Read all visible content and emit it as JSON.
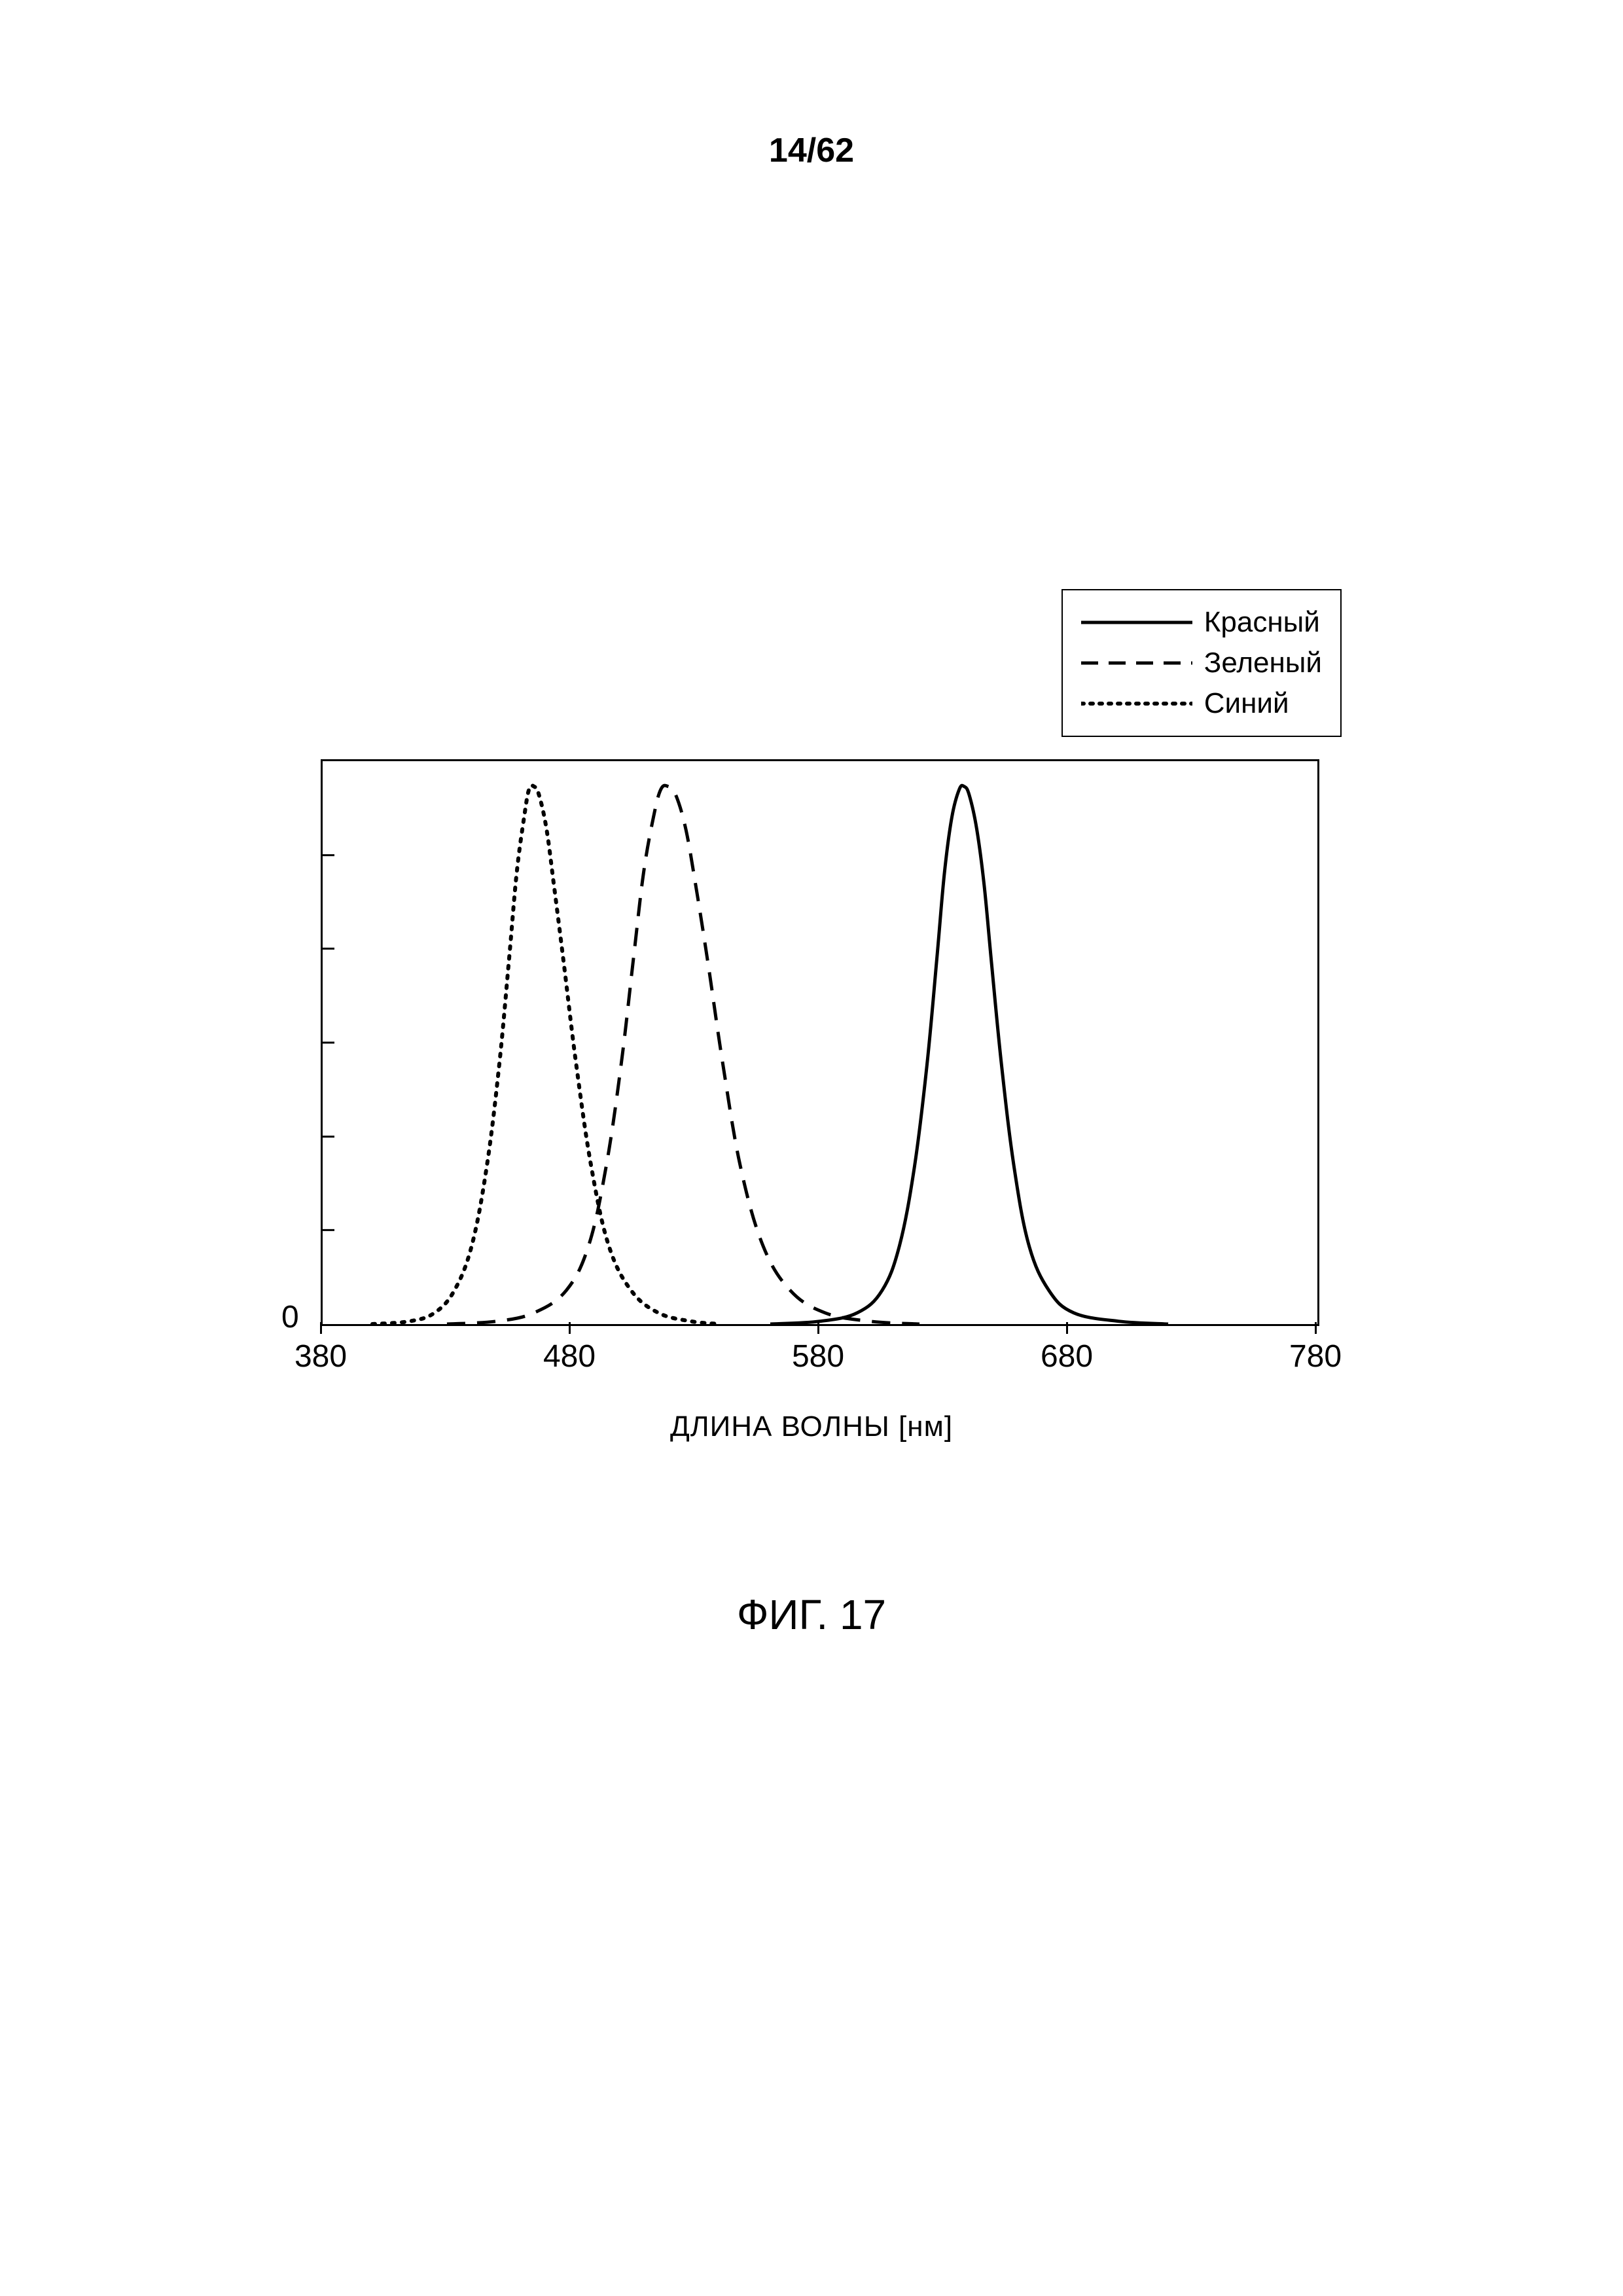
{
  "page_number": "14/62",
  "figure_caption": "ФИГ. 17",
  "chart": {
    "type": "line",
    "background_color": "#ffffff",
    "border_color": "#000000",
    "line_width": 5,
    "xlim": [
      380,
      780
    ],
    "ylim": [
      0,
      1
    ],
    "xticks": [
      380,
      480,
      580,
      680,
      780
    ],
    "yticks": [
      0,
      0.167,
      0.333,
      0.5,
      0.667,
      0.833,
      1
    ],
    "ytick_labels_visible": [
      "0"
    ],
    "x_axis_title": "ДЛИНА ВОЛНЫ [нм]",
    "x_label_fontsize": 44,
    "tick_fontsize": 48,
    "legend": {
      "position": "top-right-outside",
      "border_color": "#000000",
      "items": [
        {
          "label": "Красный",
          "dash": "solid",
          "color": "#000000"
        },
        {
          "label": "Зеленый",
          "dash": "dashed",
          "color": "#000000"
        },
        {
          "label": "Синий",
          "dash": "dotted",
          "color": "#000000"
        }
      ]
    },
    "series": {
      "red": {
        "label": "Красный",
        "color": "#000000",
        "dash": "solid",
        "line_width": 5,
        "points": [
          [
            560,
            0.0
          ],
          [
            580,
            0.005
          ],
          [
            595,
            0.02
          ],
          [
            605,
            0.06
          ],
          [
            612,
            0.14
          ],
          [
            618,
            0.28
          ],
          [
            623,
            0.46
          ],
          [
            627,
            0.65
          ],
          [
            630,
            0.8
          ],
          [
            633,
            0.9
          ],
          [
            636,
            0.95
          ],
          [
            638,
            0.955
          ],
          [
            640,
            0.94
          ],
          [
            643,
            0.88
          ],
          [
            646,
            0.78
          ],
          [
            649,
            0.64
          ],
          [
            653,
            0.46
          ],
          [
            658,
            0.28
          ],
          [
            664,
            0.14
          ],
          [
            672,
            0.06
          ],
          [
            682,
            0.02
          ],
          [
            700,
            0.005
          ],
          [
            720,
            0.0
          ]
        ]
      },
      "green": {
        "label": "Зеленый",
        "color": "#000000",
        "dash": "dashed",
        "line_width": 5,
        "points": [
          [
            430,
            0.0
          ],
          [
            450,
            0.005
          ],
          [
            465,
            0.02
          ],
          [
            478,
            0.06
          ],
          [
            487,
            0.14
          ],
          [
            494,
            0.28
          ],
          [
            500,
            0.46
          ],
          [
            505,
            0.65
          ],
          [
            509,
            0.8
          ],
          [
            513,
            0.9
          ],
          [
            516,
            0.95
          ],
          [
            519,
            0.955
          ],
          [
            522,
            0.94
          ],
          [
            526,
            0.88
          ],
          [
            530,
            0.78
          ],
          [
            535,
            0.64
          ],
          [
            541,
            0.46
          ],
          [
            548,
            0.28
          ],
          [
            557,
            0.14
          ],
          [
            568,
            0.06
          ],
          [
            582,
            0.02
          ],
          [
            600,
            0.005
          ],
          [
            620,
            0.0
          ]
        ]
      },
      "blue": {
        "label": "Синий",
        "color": "#000000",
        "dash": "dotted",
        "line_width": 5,
        "points": [
          [
            400,
            0.0
          ],
          [
            415,
            0.005
          ],
          [
            425,
            0.02
          ],
          [
            433,
            0.06
          ],
          [
            440,
            0.14
          ],
          [
            446,
            0.28
          ],
          [
            451,
            0.46
          ],
          [
            455,
            0.65
          ],
          [
            458,
            0.8
          ],
          [
            461,
            0.9
          ],
          [
            463,
            0.95
          ],
          [
            465,
            0.955
          ],
          [
            467,
            0.94
          ],
          [
            470,
            0.88
          ],
          [
            473,
            0.78
          ],
          [
            477,
            0.64
          ],
          [
            482,
            0.46
          ],
          [
            488,
            0.28
          ],
          [
            495,
            0.14
          ],
          [
            504,
            0.06
          ],
          [
            515,
            0.02
          ],
          [
            528,
            0.005
          ],
          [
            540,
            0.0
          ]
        ]
      }
    }
  }
}
